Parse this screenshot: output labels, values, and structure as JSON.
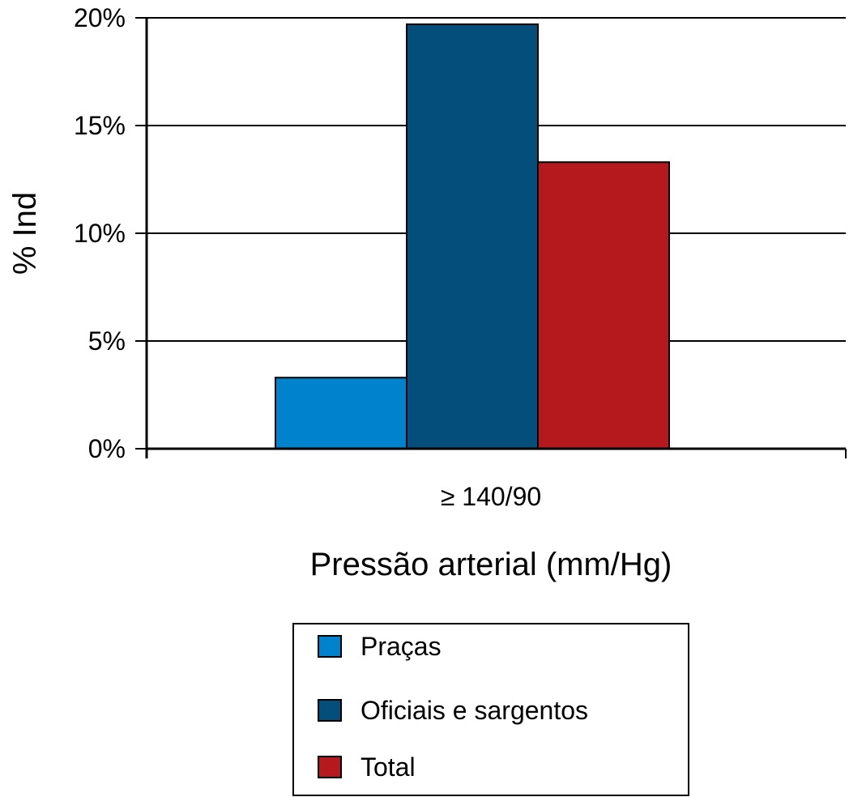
{
  "chart_data": {
    "type": "bar",
    "title": "",
    "xlabel": "Pressão arterial (mm/Hg)",
    "ylabel": "% Ind",
    "categories": [
      "≥ 140/90"
    ],
    "series": [
      {
        "name": "Praças",
        "values": [
          3.3
        ],
        "color": "#0083cc"
      },
      {
        "name": "Oficiais e sargentos",
        "values": [
          19.7
        ],
        "color": "#034e7b"
      },
      {
        "name": "Total",
        "values": [
          13.3
        ],
        "color": "#b5191e"
      }
    ],
    "ylim": [
      0,
      20
    ],
    "yticks": [
      0,
      5,
      10,
      15,
      20
    ],
    "ytick_labels": [
      "0%",
      "5%",
      "10%",
      "15%",
      "20%"
    ],
    "grid": true,
    "legend": "bottom-center"
  }
}
